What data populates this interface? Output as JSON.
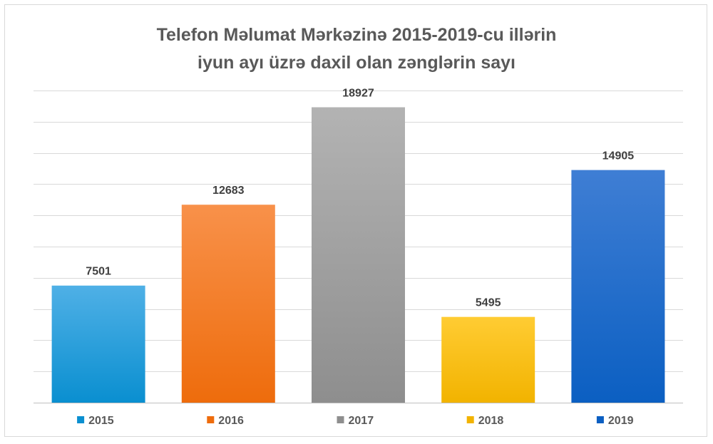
{
  "chart_data": {
    "type": "bar",
    "title_lines": [
      "Telefon Məlumat Mərkəzinə 2015-2019-cu illərin",
      "iyun ayı üzrə daxil olan zənglərin sayı"
    ],
    "categories": [
      "2015",
      "2016",
      "2017",
      "2018",
      "2019"
    ],
    "values": [
      7501,
      12683,
      18927,
      5495,
      14905
    ],
    "xlabel": "",
    "ylabel": "",
    "ylim": [
      0,
      20000
    ],
    "y_axis_labels_shown": false,
    "grid": true,
    "legend_position": "bottom",
    "data_labels": true,
    "colors": [
      {
        "light": "#4fb0e6",
        "dark": "#0a8fd0"
      },
      {
        "light": "#f8914a",
        "dark": "#ee6c0c"
      },
      {
        "light": "#b3b3b3",
        "dark": "#8e8e8e"
      },
      {
        "light": "#ffcc33",
        "dark": "#f2b300"
      },
      {
        "light": "#3f7ed4",
        "dark": "#0b5fc2"
      }
    ]
  }
}
